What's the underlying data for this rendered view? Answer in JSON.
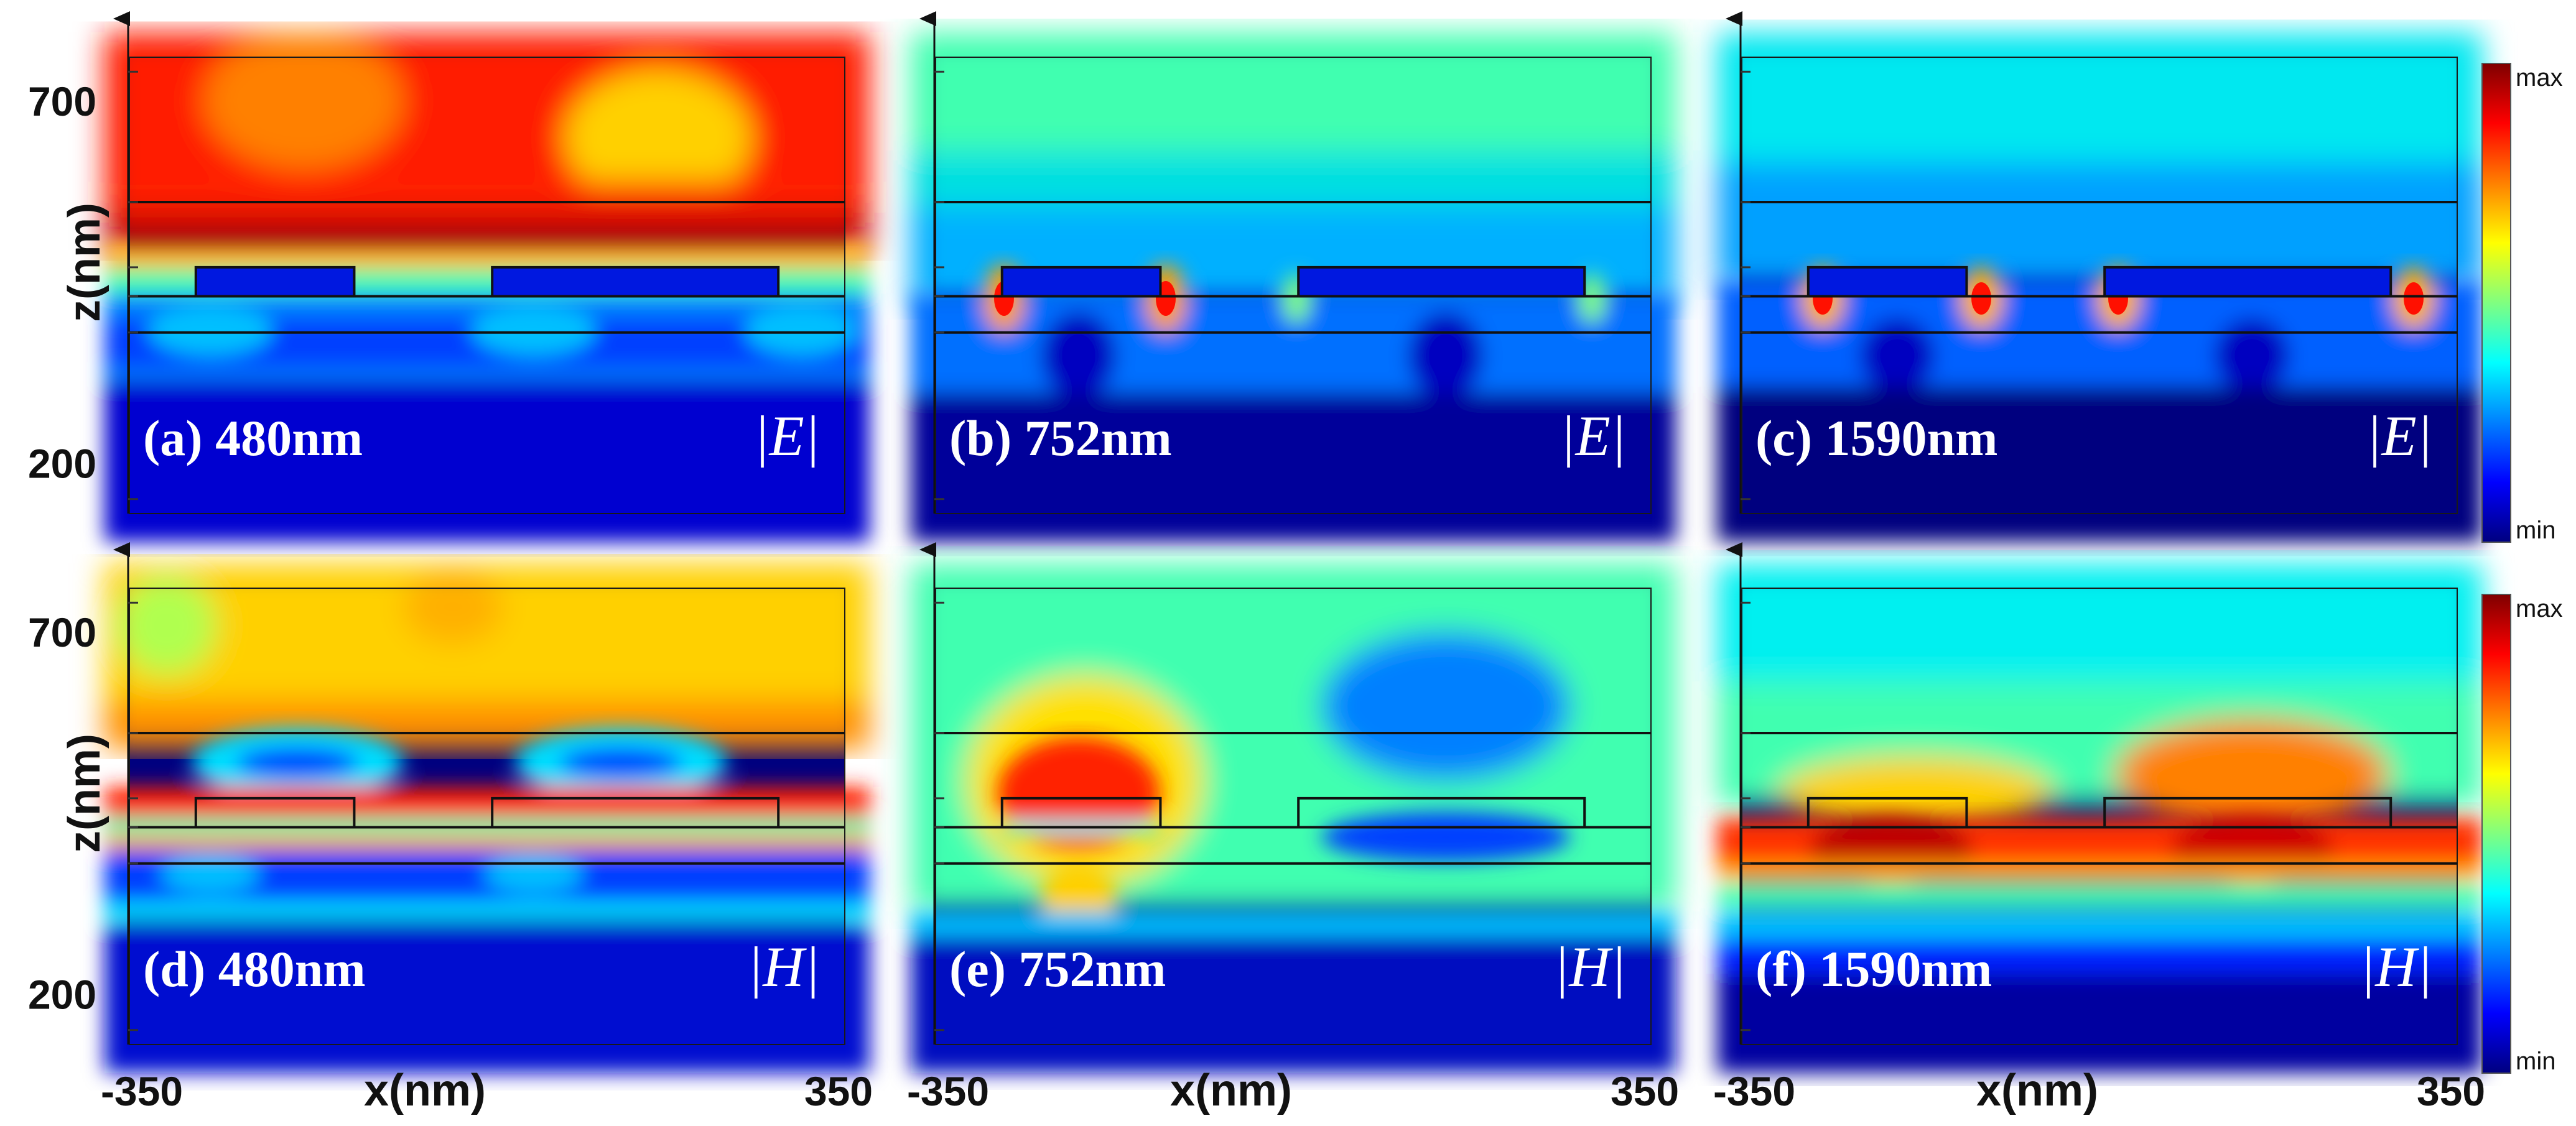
{
  "chart_data": {
    "type": "heatmap",
    "xlabel": "x(nm)",
    "ylabel": "z(nm)",
    "xlim": [
      -350,
      350
    ],
    "x_ticks": [
      "-350",
      "x(nm)",
      "350"
    ],
    "y_ticks": [
      "700",
      "200"
    ],
    "colorbar": {
      "max_label": "max",
      "min_label": "min",
      "colors": [
        "#00007f",
        "#0000ff",
        "#0080ff",
        "#00ffff",
        "#80ff80",
        "#ffff00",
        "#ff8000",
        "#ff0000",
        "#7f0000"
      ]
    },
    "structure_z_nm": {
      "top_interface": 560,
      "grating_top": 470,
      "grating_bottom": 430,
      "substrate_interface": 380
    },
    "grating_x_nm": [
      [
        -285,
        -130
      ],
      [
        5,
        285
      ]
    ],
    "panels": [
      {
        "id": "a",
        "label": "(a) 480nm",
        "wavelength_nm": 480,
        "field": "|E|",
        "field_display": "|E|"
      },
      {
        "id": "b",
        "label": "(b) 752nm",
        "wavelength_nm": 752,
        "field": "|E|",
        "field_display": "|E|"
      },
      {
        "id": "c",
        "label": "(c) 1590nm",
        "wavelength_nm": 1590,
        "field": "|E|",
        "field_display": "|E|"
      },
      {
        "id": "d",
        "label": "(d) 480nm",
        "wavelength_nm": 480,
        "field": "|H|",
        "field_display": "|H|"
      },
      {
        "id": "e",
        "label": "(e) 752nm",
        "wavelength_nm": 752,
        "field": "|H|",
        "field_display": "|H|"
      },
      {
        "id": "f",
        "label": "(f) 1590nm",
        "wavelength_nm": 1590,
        "field": "|H|",
        "field_display": "|H|"
      }
    ]
  }
}
